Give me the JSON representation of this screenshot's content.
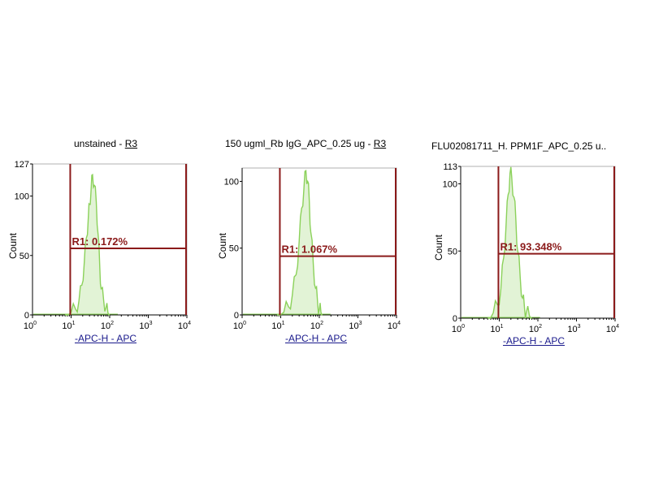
{
  "chart_data": [
    {
      "type": "area",
      "title": "unstained",
      "gate_link": "R3",
      "title_sep": " - ",
      "xlabel": "-APC-H - APC",
      "ylabel": "Count",
      "x_scale": "log",
      "xlim": [
        1,
        10000
      ],
      "ylim": [
        0,
        127
      ],
      "x_ticks": [
        {
          "base": "10",
          "exp": "0"
        },
        {
          "base": "10",
          "exp": "1"
        },
        {
          "base": "10",
          "exp": "2"
        },
        {
          "base": "10",
          "exp": "3"
        },
        {
          "base": "10",
          "exp": "4"
        }
      ],
      "y_ticks": [
        0,
        50,
        100,
        127
      ],
      "series_color": "#8bd15a",
      "gate_color": "#8b1a1a",
      "gate": {
        "label": "R1: 0.172%",
        "x_start": 9.5,
        "x_end": 10000,
        "y": 56
      },
      "histogram": {
        "x": [
          7,
          10,
          13,
          16,
          19,
          22,
          25,
          28,
          30,
          33,
          36,
          40,
          45,
          50,
          55,
          60,
          70,
          80,
          90,
          100
        ],
        "y": [
          0,
          2,
          5,
          12,
          25,
          45,
          65,
          82,
          93,
          105,
          118,
          109,
          95,
          68,
          42,
          22,
          12,
          6,
          2,
          0
        ]
      }
    },
    {
      "type": "area",
      "title": "150 ugml_Rb IgG_APC_0.25 ug",
      "gate_link": "R3",
      "title_sep": " - ",
      "xlabel": "-APC-H - APC",
      "ylabel": "Count",
      "x_scale": "log",
      "xlim": [
        1,
        10000
      ],
      "ylim": [
        0,
        110
      ],
      "x_ticks": [
        {
          "base": "10",
          "exp": "0"
        },
        {
          "base": "10",
          "exp": "1"
        },
        {
          "base": "10",
          "exp": "2"
        },
        {
          "base": "10",
          "exp": "3"
        },
        {
          "base": "10",
          "exp": "4"
        }
      ],
      "y_ticks": [
        0,
        50,
        100
      ],
      "series_color": "#8bd15a",
      "gate_color": "#8b1a1a",
      "gate": {
        "label": "R1: 1.067%",
        "x_start": 9.5,
        "x_end": 10000,
        "y": 44
      },
      "histogram": {
        "x": [
          8,
          12,
          16,
          20,
          25,
          30,
          35,
          40,
          45,
          50,
          55,
          60,
          70,
          80,
          90,
          100,
          110,
          120
        ],
        "y": [
          0,
          2,
          6,
          15,
          30,
          55,
          80,
          95,
          108,
          100,
          85,
          62,
          38,
          20,
          10,
          4,
          2,
          0
        ]
      }
    },
    {
      "type": "area",
      "title": "FLU02081711_H. PPM1F_APC_0.25 u..",
      "gate_link": "",
      "title_sep": "",
      "xlabel": "-APC-H - APC",
      "ylabel": "Count",
      "x_scale": "log",
      "xlim": [
        1,
        10000
      ],
      "ylim": [
        0,
        113
      ],
      "x_ticks": [
        {
          "base": "10",
          "exp": "0"
        },
        {
          "base": "10",
          "exp": "1"
        },
        {
          "base": "10",
          "exp": "2"
        },
        {
          "base": "10",
          "exp": "3"
        },
        {
          "base": "10",
          "exp": "4"
        }
      ],
      "y_ticks": [
        0,
        50,
        100,
        113
      ],
      "series_color": "#8bd15a",
      "gate_color": "#8b1a1a",
      "gate": {
        "label": "R1: 93.348%",
        "x_start": 9.5,
        "x_end": 10000,
        "y": 48
      },
      "histogram": {
        "x": [
          5,
          7,
          9,
          11,
          13,
          15,
          17,
          19,
          21,
          24,
          27,
          30,
          35,
          40,
          45,
          50,
          60,
          70
        ],
        "y": [
          0,
          4,
          10,
          22,
          45,
          70,
          92,
          108,
          105,
          90,
          72,
          50,
          30,
          15,
          8,
          4,
          2,
          0
        ]
      }
    }
  ]
}
